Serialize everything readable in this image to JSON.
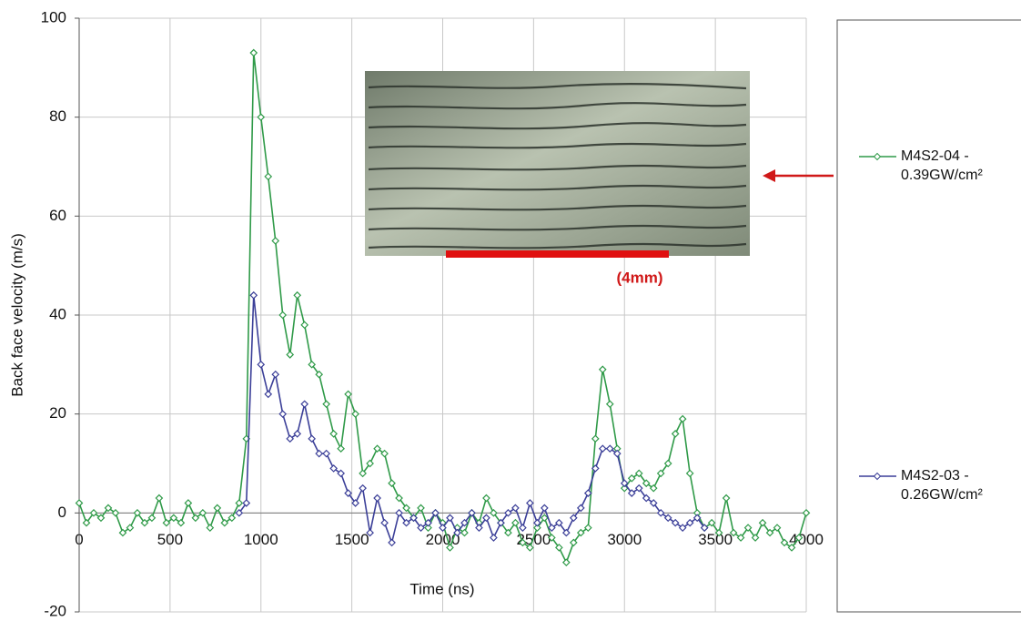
{
  "chart_data": {
    "type": "line",
    "x_label": "Time (ns)",
    "y_label": "Back face velocity (m/s)",
    "annotation": "(4mm)",
    "xlim": [
      0,
      4000
    ],
    "xticks": [
      0,
      500,
      1000,
      1500,
      2000,
      2500,
      3000,
      3500,
      4000
    ],
    "ylim": [
      -20,
      100
    ],
    "yticks": [
      -20,
      0,
      20,
      40,
      60,
      80,
      100
    ],
    "grid": true,
    "x": [
      0,
      40,
      80,
      120,
      160,
      200,
      240,
      280,
      320,
      360,
      400,
      440,
      480,
      520,
      560,
      600,
      640,
      680,
      720,
      760,
      800,
      840,
      880,
      920,
      960,
      1000,
      1040,
      1080,
      1120,
      1160,
      1200,
      1240,
      1280,
      1320,
      1360,
      1400,
      1440,
      1480,
      1520,
      1560,
      1600,
      1640,
      1680,
      1720,
      1760,
      1800,
      1840,
      1880,
      1920,
      1960,
      2000,
      2040,
      2080,
      2120,
      2160,
      2200,
      2240,
      2280,
      2320,
      2360,
      2400,
      2440,
      2480,
      2520,
      2560,
      2600,
      2640,
      2680,
      2720,
      2760,
      2800,
      2840,
      2880,
      2920,
      2960,
      3000,
      3040,
      3080,
      3120,
      3160,
      3200,
      3240,
      3280,
      3320,
      3360,
      3400,
      3440,
      3480,
      3520,
      3560,
      3600,
      3640,
      3680,
      3720,
      3760,
      3800,
      3840,
      3880,
      3920,
      3960,
      4000
    ],
    "series": [
      {
        "name": "M4S2-04 - 0.39GW/cm²",
        "color": "#2f9a48",
        "values": [
          2,
          -2,
          0,
          -1,
          1,
          0,
          -4,
          -3,
          0,
          -2,
          -1,
          3,
          -2,
          -1,
          -2,
          2,
          -1,
          0,
          -3,
          1,
          -2,
          -1,
          2,
          15,
          93,
          80,
          68,
          55,
          40,
          32,
          44,
          38,
          30,
          28,
          22,
          16,
          13,
          24,
          20,
          8,
          10,
          13,
          12,
          6,
          3,
          1,
          -1,
          1,
          -3,
          0,
          -2,
          -7,
          -3,
          -4,
          0,
          -2,
          3,
          0,
          -2,
          -4,
          -2,
          -6,
          -7,
          -3,
          -1,
          -5,
          -7,
          -10,
          -6,
          -4,
          -3,
          15,
          29,
          22,
          13,
          5,
          7,
          8,
          6,
          5,
          8,
          10,
          16,
          19,
          8,
          0,
          -3,
          -2,
          -4,
          3,
          -4,
          -5,
          -3,
          -5,
          -2,
          -4,
          -3,
          -6,
          -7,
          -5,
          0
        ]
      },
      {
        "name": "M4S2-03 - 0.26GW/cm²",
        "color": "#3b3f98",
        "values": [
          null,
          null,
          null,
          null,
          null,
          null,
          null,
          null,
          null,
          null,
          null,
          null,
          null,
          null,
          null,
          null,
          null,
          null,
          null,
          null,
          null,
          null,
          0,
          2,
          44,
          30,
          24,
          28,
          20,
          15,
          16,
          22,
          15,
          12,
          12,
          9,
          8,
          4,
          2,
          5,
          -4,
          3,
          -2,
          -6,
          0,
          -2,
          -1,
          -3,
          -2,
          0,
          -3,
          -1,
          -4,
          -2,
          0,
          -3,
          -1,
          -5,
          -2,
          0,
          1,
          -3,
          2,
          -2,
          1,
          -3,
          -2,
          -4,
          -1,
          1,
          4,
          9,
          13,
          13,
          12,
          6,
          4,
          5,
          3,
          2,
          0,
          -1,
          -2,
          -3,
          -2,
          -1,
          -3,
          null,
          null,
          null,
          null,
          null,
          null,
          null,
          null,
          null,
          null,
          null,
          null,
          null,
          null
        ]
      }
    ]
  }
}
